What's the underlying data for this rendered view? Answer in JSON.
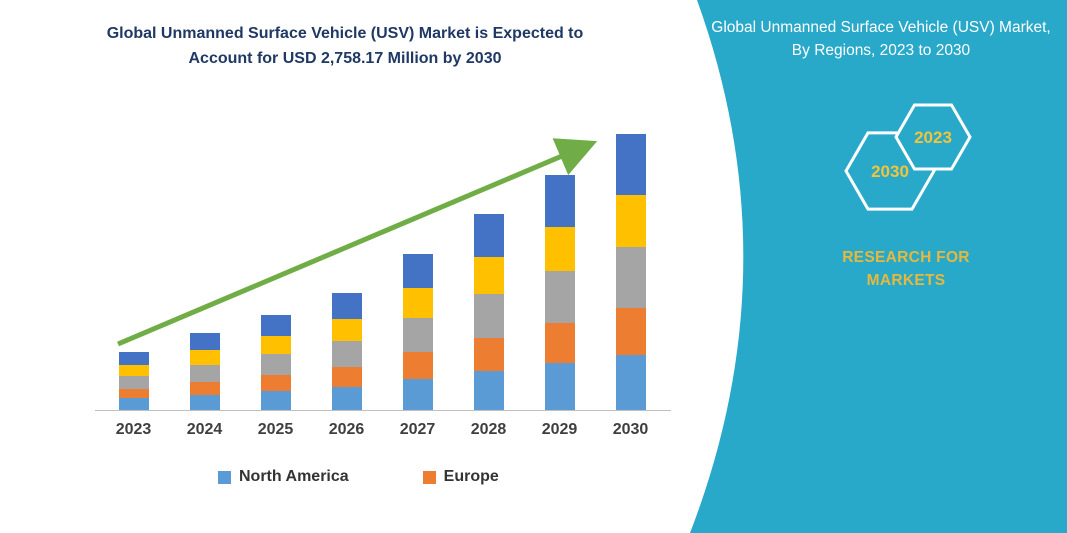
{
  "left_panel": {
    "title": {
      "line1": "Global Unmanned Surface Vehicle (USV) Market is Expected to",
      "line2": "Account for USD 2,758.17 Million by 2030",
      "color": "#1F3864"
    }
  },
  "chart_data": {
    "type": "bar",
    "stacked": true,
    "title": "Global Unmanned Surface Vehicle (USV) Market is Expected to Account for USD 2,758.17 Million by 2030",
    "unit": "USD Million",
    "categories": [
      "2023",
      "2024",
      "2025",
      "2026",
      "2027",
      "2028",
      "2029",
      "2030"
    ],
    "series": [
      {
        "name": "North America",
        "color": "#5B9BD5",
        "values": [
          116,
          154,
          190,
          234,
          312,
          392,
          470,
          552
        ]
      },
      {
        "name": "Europe",
        "color": "#ED7D31",
        "values": [
          99,
          131,
          162,
          199,
          265,
          333,
          400,
          469
        ]
      },
      {
        "name": "Unlabeled (gray)",
        "color": "#A5A5A5",
        "values": [
          128,
          169,
          209,
          257,
          343,
          431,
          517,
          607
        ]
      },
      {
        "name": "Unlabeled (yellow)",
        "color": "#FFC000",
        "values": [
          110,
          146,
          181,
          222,
          296,
          372,
          447,
          524
        ]
      },
      {
        "name": "Unlabeled (dark blue)",
        "color": "#4472C4",
        "values": [
          128,
          169,
          209,
          257,
          343,
          431,
          517,
          606.17
        ]
      }
    ],
    "legend": [
      {
        "label": "North America",
        "color": "#5B9BD5"
      },
      {
        "label": "Europe",
        "color": "#ED7D31"
      }
    ],
    "legend_position": "bottom",
    "grid": false,
    "ylim": [
      0,
      2900
    ],
    "trend_arrow_color": "#70AD47"
  },
  "right_panel": {
    "background_color": "#29A9C9",
    "title": "Global Unmanned Surface Vehicle (USV) Market, By Regions, 2023 to 2030",
    "title_color": "#FFFFFF",
    "hexagons": [
      {
        "year": "2030"
      },
      {
        "year": "2023"
      }
    ],
    "hexagon_outline_color": "#FFFFFF",
    "year_text_color": "#F0C43C",
    "brand_line1": "RESEARCH FOR",
    "brand_line2": "MARKETS",
    "brand_color": "#E6B83C"
  }
}
